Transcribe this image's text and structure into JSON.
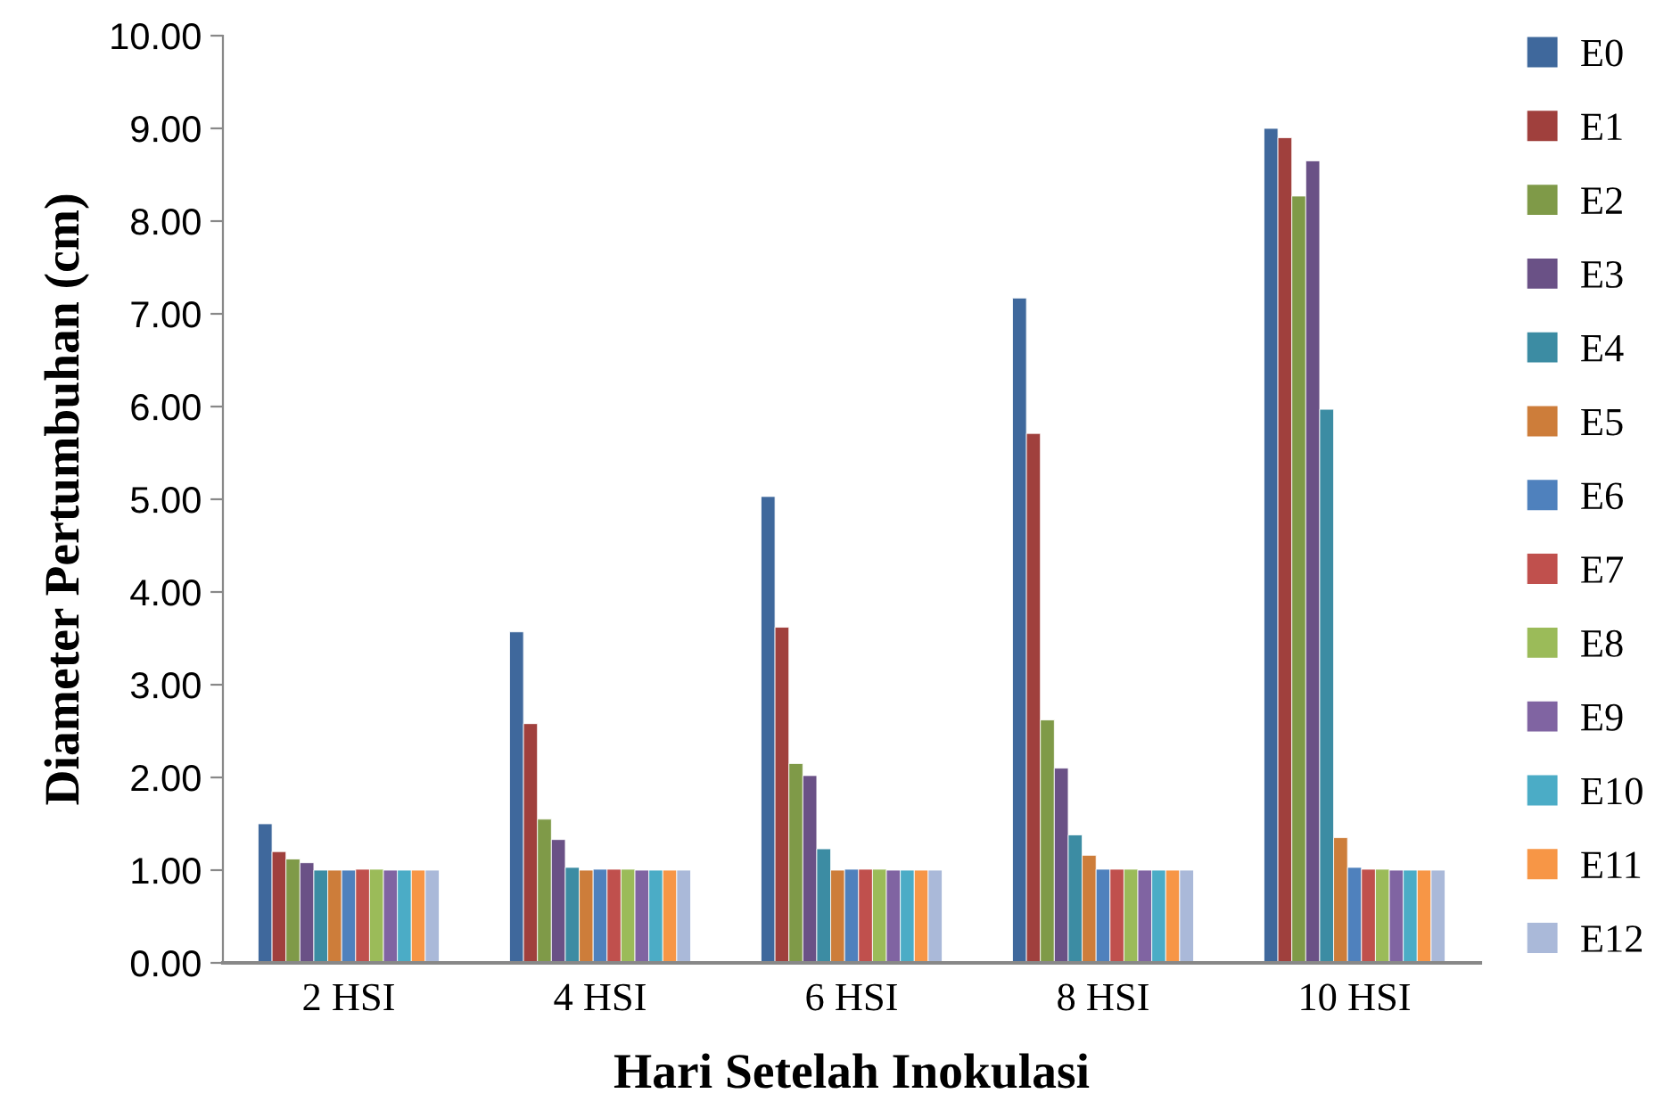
{
  "chart_data": {
    "type": "bar",
    "xlabel": "Hari Setelah Inokulasi",
    "ylabel": "Diameter Pertumbuhan (cm)",
    "categories": [
      "2 HSI",
      "4 HSI",
      "6 HSI",
      "8 HSI",
      "10 HSI"
    ],
    "series": [
      {
        "name": "E0",
        "color": "#3f689c",
        "values": [
          1.5,
          3.57,
          5.03,
          7.17,
          9.0
        ]
      },
      {
        "name": "E1",
        "color": "#a0403d",
        "values": [
          1.2,
          2.58,
          3.62,
          5.71,
          8.9
        ]
      },
      {
        "name": "E2",
        "color": "#7f9a48",
        "values": [
          1.12,
          1.55,
          2.15,
          2.62,
          8.27
        ]
      },
      {
        "name": "E3",
        "color": "#6a5186",
        "values": [
          1.08,
          1.33,
          2.02,
          2.1,
          8.65
        ]
      },
      {
        "name": "E4",
        "color": "#3c8ca3",
        "values": [
          1.0,
          1.03,
          1.23,
          1.38,
          5.97
        ]
      },
      {
        "name": "E5",
        "color": "#cd7d3a",
        "values": [
          1.0,
          1.0,
          1.0,
          1.16,
          1.35
        ]
      },
      {
        "name": "E6",
        "color": "#4f81bd",
        "values": [
          1.0,
          1.01,
          1.01,
          1.01,
          1.03
        ]
      },
      {
        "name": "E7",
        "color": "#c0504d",
        "values": [
          1.01,
          1.01,
          1.01,
          1.01,
          1.01
        ]
      },
      {
        "name": "E8",
        "color": "#9bbb59",
        "values": [
          1.01,
          1.01,
          1.01,
          1.01,
          1.01
        ]
      },
      {
        "name": "E9",
        "color": "#8064a2",
        "values": [
          1.0,
          1.0,
          1.0,
          1.0,
          1.0
        ]
      },
      {
        "name": "E10",
        "color": "#4bacc6",
        "values": [
          1.0,
          1.0,
          1.0,
          1.0,
          1.0
        ]
      },
      {
        "name": "E11",
        "color": "#f79646",
        "values": [
          1.0,
          1.0,
          1.0,
          1.0,
          1.0
        ]
      },
      {
        "name": "E12",
        "color": "#aab9d9",
        "values": [
          1.0,
          1.0,
          1.0,
          1.0,
          1.0
        ]
      }
    ],
    "ylim": [
      0,
      10
    ],
    "yticks": [
      {
        "value": 0,
        "label": "0.00"
      },
      {
        "value": 1,
        "label": "1.00"
      },
      {
        "value": 2,
        "label": "2.00"
      },
      {
        "value": 3,
        "label": "3.00"
      },
      {
        "value": 4,
        "label": "4.00"
      },
      {
        "value": 5,
        "label": "5.00"
      },
      {
        "value": 6,
        "label": "6.00"
      },
      {
        "value": 7,
        "label": "7.00"
      },
      {
        "value": 8,
        "label": "8.00"
      },
      {
        "value": 9,
        "label": "9.00"
      },
      {
        "value": 10,
        "label": "10.00"
      }
    ],
    "grid": false,
    "legend": "right"
  }
}
